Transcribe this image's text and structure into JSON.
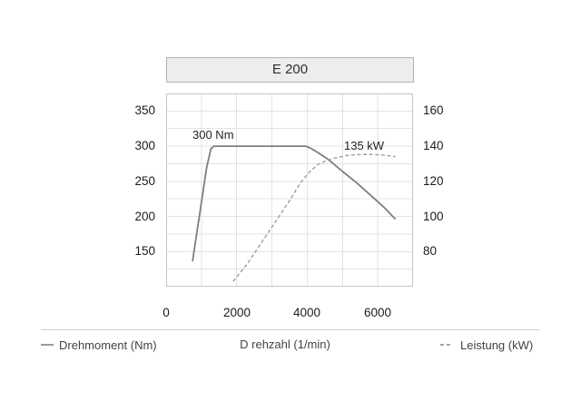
{
  "title_box": {
    "label": "E 200"
  },
  "legend": {
    "torque_label": "Drehmoment (Nm)",
    "x_axis_label": "D rehzahl (1/min)",
    "power_label": "Leistung (kW)"
  },
  "colors": {
    "background": "#ffffff",
    "title_box_bg": "#ededed",
    "title_box_border": "#b2b2b2",
    "plot_border": "#c5c5c5",
    "grid": "#e3e3e3",
    "torque_line": "#7e7e7e",
    "power_line": "#9e9e9e",
    "tick_text": "#1c1c1c",
    "legend_text": "#434343",
    "separator": "#cfcfcf"
  },
  "chart_data": {
    "type": "line",
    "title": "E 200",
    "xlabel": "Drehzahl (1/min)",
    "grid": true,
    "legend_position": "bottom",
    "x_axis": {
      "min": 0,
      "max": 7000,
      "grid_step": 1000,
      "tick_labels": [
        "0",
        "2000",
        "4000",
        "6000"
      ],
      "tick_values": [
        0,
        2000,
        4000,
        6000
      ]
    },
    "y_left": {
      "label": "Drehmoment (Nm)",
      "min": 100,
      "max": 375,
      "grid_step": 25,
      "tick_labels": [
        "150",
        "200",
        "250",
        "300",
        "350"
      ],
      "tick_values": [
        150,
        200,
        250,
        300,
        350
      ]
    },
    "y_right": {
      "label": "Leistung (kW)",
      "min": 60,
      "max": 170,
      "grid_step": 10,
      "tick_labels": [
        "80",
        "100",
        "120",
        "140",
        "160"
      ],
      "tick_values": [
        80,
        100,
        120,
        140,
        160
      ]
    },
    "series": [
      {
        "name": "Drehmoment (Nm)",
        "axis": "left",
        "style": "solid",
        "points": [
          [
            750,
            136
          ],
          [
            1150,
            270
          ],
          [
            1270,
            296
          ],
          [
            1350,
            300
          ],
          [
            3950,
            300
          ],
          [
            4100,
            297
          ],
          [
            4300,
            291
          ],
          [
            4600,
            281
          ],
          [
            5000,
            264
          ],
          [
            5400,
            248
          ],
          [
            5800,
            230
          ],
          [
            6200,
            212
          ],
          [
            6500,
            196
          ]
        ]
      },
      {
        "name": "Leistung (kW)",
        "axis": "right",
        "style": "dashed",
        "points": [
          [
            1900,
            63
          ],
          [
            2300,
            73
          ],
          [
            2700,
            85
          ],
          [
            3100,
            97
          ],
          [
            3500,
            109
          ],
          [
            3800,
            119
          ],
          [
            4050,
            125
          ],
          [
            4300,
            129.5
          ],
          [
            4550,
            131.8
          ],
          [
            4800,
            133.3
          ],
          [
            5100,
            134.6
          ],
          [
            5400,
            135.2
          ],
          [
            5800,
            135.3
          ],
          [
            6100,
            135
          ],
          [
            6400,
            134.4
          ],
          [
            6500,
            134
          ]
        ]
      }
    ],
    "annotations": [
      {
        "text": "300 Nm",
        "x": 750,
        "axis": "left",
        "y": 315
      },
      {
        "text": "135 kW",
        "x": 5050,
        "axis": "right",
        "y": 140
      }
    ]
  }
}
